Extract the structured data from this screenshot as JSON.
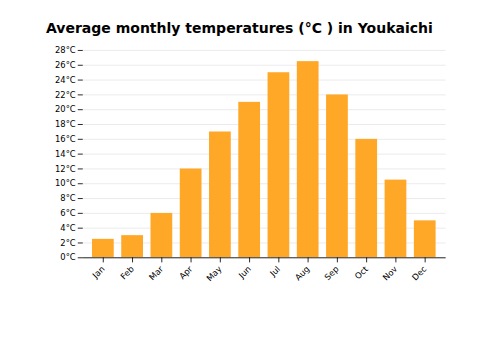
{
  "chart_data": {
    "type": "bar",
    "title": "Average monthly temperatures (°C ) in Youkaichi",
    "categories": [
      "Jan",
      "Feb",
      "Mar",
      "Apr",
      "May",
      "Jun",
      "Jul",
      "Aug",
      "Sep",
      "Oct",
      "Nov",
      "Dec"
    ],
    "values": [
      2.5,
      3.0,
      6.0,
      12.0,
      17.0,
      21.0,
      25.0,
      26.5,
      22.0,
      16.0,
      10.5,
      5.0
    ],
    "color": "#FFA726",
    "ylim": [
      0,
      28
    ],
    "yticks": [
      {
        "value": 0,
        "label": "0°C"
      },
      {
        "value": 2,
        "label": "2°C"
      },
      {
        "value": 4,
        "label": "4°C"
      },
      {
        "value": 6,
        "label": "6°C"
      },
      {
        "value": 8,
        "label": "8°C"
      },
      {
        "value": 10,
        "label": "10°C"
      },
      {
        "value": 12,
        "label": "12°C"
      },
      {
        "value": 14,
        "label": "14°C"
      },
      {
        "value": 16,
        "label": "16°C"
      },
      {
        "value": 18,
        "label": "18°C"
      },
      {
        "value": 20,
        "label": "20°C"
      },
      {
        "value": 22,
        "label": "22°C"
      },
      {
        "value": 24,
        "label": "24°C"
      },
      {
        "value": 26,
        "label": "26°C"
      },
      {
        "value": 28,
        "label": "28°C"
      }
    ],
    "grid": true
  }
}
